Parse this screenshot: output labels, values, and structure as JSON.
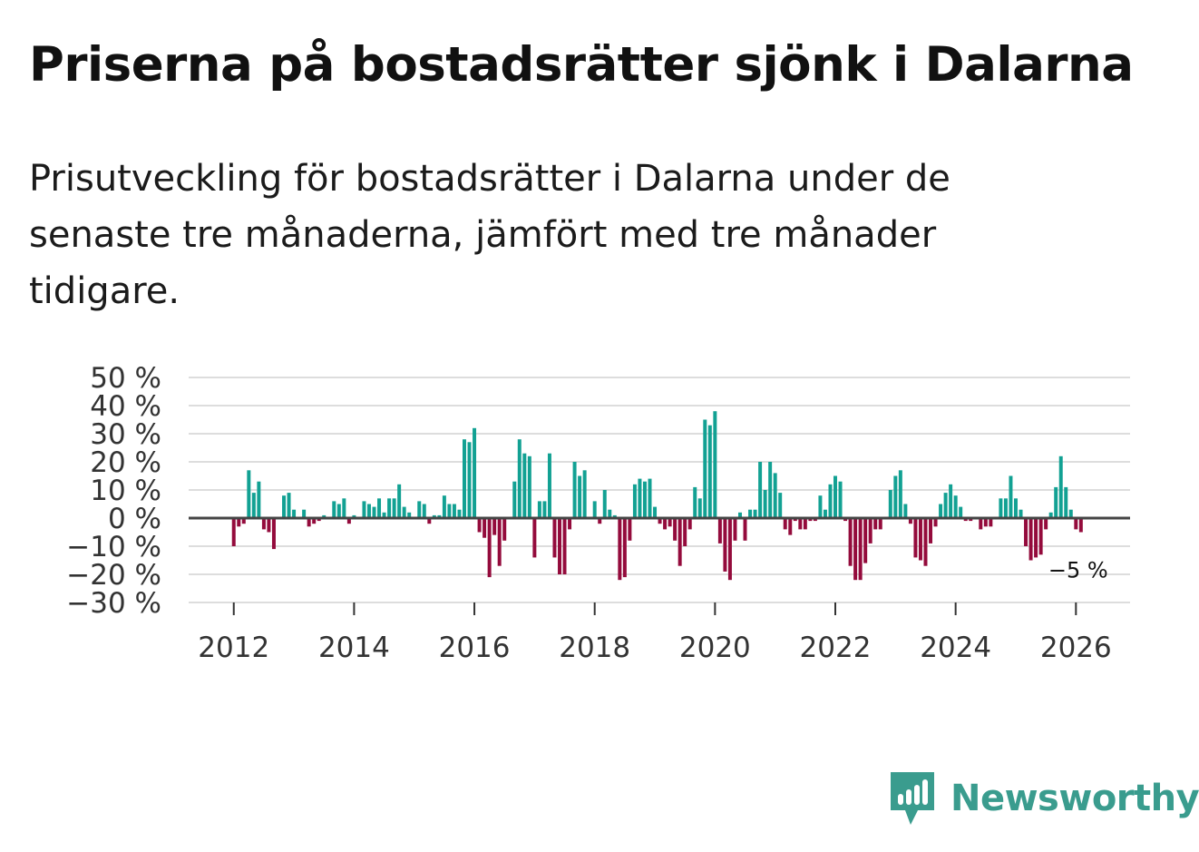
{
  "title": "Priserna på bostadsrätter sjönk i Dalarna",
  "subtitle": "Prisutveckling för bostadsrätter i Dalarna under de senaste tre månaderna, jämfört med tre månader tidigare.",
  "brand": {
    "name": "Newsworthy",
    "color": "#3a9c8e",
    "icon": "bar-chart-speech-bubble-icon"
  },
  "colors": {
    "positive": "#12a193",
    "negative": "#940b3c",
    "grid": "#dddddd",
    "zero": "#444444"
  },
  "chart_data": {
    "type": "bar",
    "title": "Priserna på bostadsrätter sjönk i Dalarna",
    "xlabel": "",
    "ylabel": "",
    "ylim": [
      -30,
      50
    ],
    "yticks": [
      -30,
      -20,
      -10,
      0,
      10,
      20,
      30,
      40,
      50
    ],
    "ytick_labels": [
      "−30 %",
      "−20 %",
      "−10 %",
      "0 %",
      "10 %",
      "20 %",
      "30 %",
      "40 %",
      "50 %"
    ],
    "xlim": [
      2011.25,
      2026.9
    ],
    "xticks": [
      2012,
      2014,
      2016,
      2018,
      2020,
      2022,
      2024,
      2026
    ],
    "xtick_labels": [
      "2012",
      "2014",
      "2016",
      "2018",
      "2020",
      "2022",
      "2024",
      "2026"
    ],
    "start": {
      "year": 2012,
      "month": 1
    },
    "frequency": "monthly",
    "last_label": "−5 %",
    "values": [
      -10,
      -3,
      -2,
      17,
      9,
      13,
      -4,
      -5,
      -11,
      0,
      8,
      9,
      3,
      0,
      3,
      -3,
      -2,
      -1,
      1,
      0,
      6,
      5,
      7,
      -2,
      1,
      0,
      6,
      5,
      4,
      7,
      2,
      7,
      7,
      12,
      4,
      2,
      0,
      6,
      5,
      -2,
      1,
      1,
      8,
      5,
      5,
      3,
      28,
      27,
      32,
      -5,
      -7,
      -21,
      -6,
      -17,
      -8,
      0,
      13,
      28,
      23,
      22,
      -14,
      6,
      6,
      23,
      -14,
      -20,
      -20,
      -4,
      20,
      15,
      17,
      0,
      6,
      -2,
      10,
      3,
      1,
      -22,
      -21,
      -8,
      12,
      14,
      13,
      14,
      4,
      -2,
      -4,
      -3,
      -8,
      -17,
      -10,
      -4,
      11,
      7,
      35,
      33,
      38,
      -9,
      -19,
      -22,
      -8,
      2,
      -8,
      3,
      3,
      20,
      10,
      20,
      16,
      9,
      -4,
      -6,
      -1,
      -4,
      -4,
      -1,
      -1,
      8,
      3,
      12,
      15,
      13,
      -1,
      -17,
      -22,
      -22,
      -16,
      -9,
      -4,
      -4,
      0,
      10,
      15,
      17,
      5,
      -2,
      -14,
      -15,
      -17,
      -9,
      -3,
      5,
      9,
      12,
      8,
      4,
      -1,
      -1,
      0,
      -4,
      -3,
      -3,
      0,
      7,
      7,
      15,
      7,
      3,
      -10,
      -15,
      -14,
      -13,
      -4,
      2,
      11,
      22,
      11,
      3,
      -4,
      -5
    ]
  }
}
